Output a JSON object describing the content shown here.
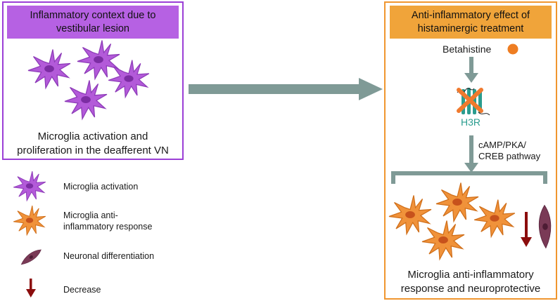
{
  "left_panel": {
    "title": "Inflammatory context due to vestibular lesion",
    "caption_line1": "Microglia activation and",
    "caption_line2": "proliferation in the deafferent VN"
  },
  "right_panel": {
    "title_line1": "Anti-inflammatory effect of",
    "title_line2": "histaminergic treatment",
    "drug_label": "Betahistine",
    "receptor_label": "H3R",
    "pathway_line1": "cAMP/PKA/",
    "pathway_line2": "CREB pathway",
    "caption_line1": "Microglia anti-inflammatory",
    "caption_line2": "response and neuroprotective"
  },
  "legend": {
    "items": [
      {
        "label_line1": "Microglia activation",
        "label_line2": "",
        "icon": "purple-microglia-icon"
      },
      {
        "label_line1": "Microglia anti-",
        "label_line2": "inflammatory response",
        "icon": "orange-microglia-icon"
      },
      {
        "label_line1": "Neuronal differentiation",
        "label_line2": "",
        "icon": "neuron-icon"
      },
      {
        "label_line1": "Decrease",
        "label_line2": "",
        "icon": "down-arrow-icon"
      }
    ]
  },
  "colors": {
    "purple": "#b661e3",
    "purple_border": "#9b3fd6",
    "orange": "#f0a43a",
    "orange_border": "#f0962f",
    "arrow_gray": "#7f9a96",
    "teal": "#2a9d8f",
    "dark_red": "#8b0d0d",
    "neuron": "#7a3a56"
  }
}
